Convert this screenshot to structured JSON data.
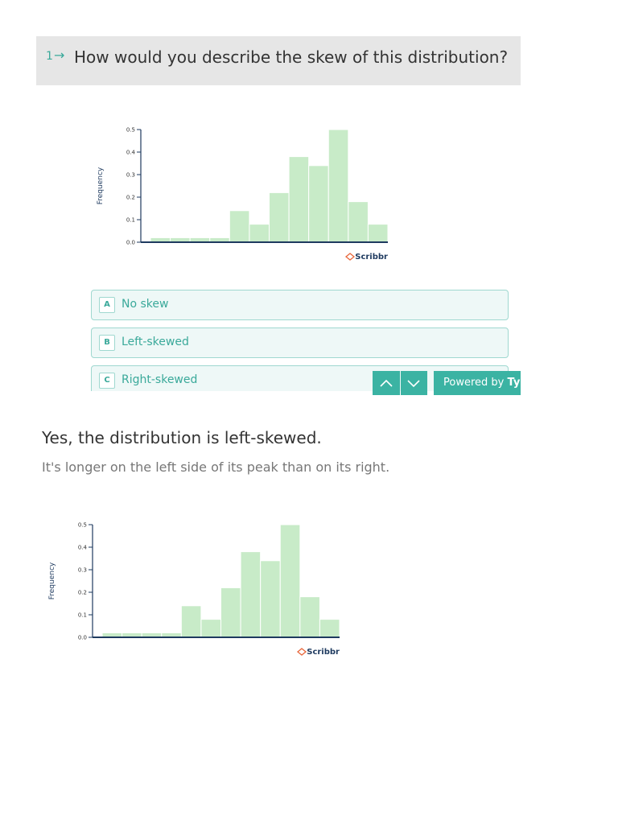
{
  "question": {
    "number": "1",
    "text": "How would you describe the skew of this distribution?"
  },
  "options": [
    {
      "key": "A",
      "label": "No skew"
    },
    {
      "key": "B",
      "label": "Left-skewed"
    },
    {
      "key": "C",
      "label": "Right-skewed"
    }
  ],
  "footer": {
    "powered": "Powered by",
    "brand": "Typ"
  },
  "answer": {
    "title": "Yes, the distribution is left-skewed.",
    "explanation": "It's longer on the left side of its peak than on its right."
  },
  "chart_data": [
    {
      "type": "bar",
      "y_label": "Frequency",
      "watermark": "Scribbr",
      "categories": [
        null,
        null,
        null,
        null,
        null,
        null,
        null,
        null,
        null,
        null,
        null,
        null
      ],
      "values": [
        0.02,
        0.02,
        0.02,
        0.02,
        0.14,
        0.08,
        0.22,
        0.38,
        0.34,
        0.5,
        0.18,
        0.08
      ],
      "color": "#c8ebc8",
      "ylim": [
        0,
        0.5
      ],
      "yticks": [
        {
          "value": 0,
          "label": "0.0"
        },
        0.1,
        0.2,
        0.3,
        0.4,
        0.5
      ]
    },
    {
      "type": "bar",
      "y_label": "Frequency",
      "watermark": "Scribbr",
      "categories": [
        null,
        null,
        null,
        null,
        null,
        null,
        null,
        null,
        null,
        null,
        null,
        null
      ],
      "values": [
        0.02,
        0.02,
        0.02,
        0.02,
        0.14,
        0.08,
        0.22,
        0.38,
        0.34,
        0.5,
        0.18,
        0.08
      ],
      "color": "#c8ebc8",
      "ylim": [
        0,
        0.5
      ],
      "yticks": [
        {
          "value": 0,
          "label": "0.0"
        },
        0.1,
        0.2,
        0.3,
        0.4,
        0.5
      ]
    }
  ]
}
